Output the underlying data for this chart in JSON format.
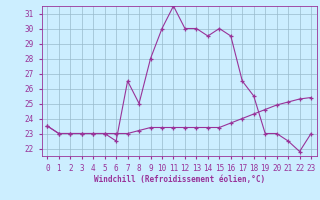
{
  "xlabel": "Windchill (Refroidissement éolien,°C)",
  "bg_color": "#cceeff",
  "line_color": "#993399",
  "grid_color": "#99bbcc",
  "xlim": [
    -0.5,
    23.5
  ],
  "ylim": [
    21.5,
    31.5
  ],
  "yticks": [
    22,
    23,
    24,
    25,
    26,
    27,
    28,
    29,
    30,
    31
  ],
  "xticks": [
    0,
    1,
    2,
    3,
    4,
    5,
    6,
    7,
    8,
    9,
    10,
    11,
    12,
    13,
    14,
    15,
    16,
    17,
    18,
    19,
    20,
    21,
    22,
    23
  ],
  "line1_x": [
    0,
    1,
    2,
    3,
    4,
    5,
    6,
    7,
    8,
    9,
    10,
    11,
    12,
    13,
    14,
    15,
    16,
    17,
    18,
    19,
    20,
    21,
    22,
    23
  ],
  "line1_y": [
    23.5,
    23.0,
    23.0,
    23.0,
    23.0,
    23.0,
    22.5,
    26.5,
    25.0,
    28.0,
    30.0,
    31.5,
    30.0,
    30.0,
    29.5,
    30.0,
    29.5,
    26.5,
    25.5,
    23.0,
    23.0,
    22.5,
    21.8,
    23.0
  ],
  "line2_x": [
    0,
    1,
    2,
    3,
    4,
    5,
    6,
    7,
    8,
    9,
    10,
    11,
    12,
    13,
    14,
    15,
    16,
    17,
    18,
    19,
    20,
    21,
    22,
    23
  ],
  "line2_y": [
    23.5,
    23.0,
    23.0,
    23.0,
    23.0,
    23.0,
    23.0,
    23.0,
    23.2,
    23.4,
    23.4,
    23.4,
    23.4,
    23.4,
    23.4,
    23.4,
    23.7,
    24.0,
    24.3,
    24.6,
    24.9,
    25.1,
    25.3,
    25.4
  ]
}
